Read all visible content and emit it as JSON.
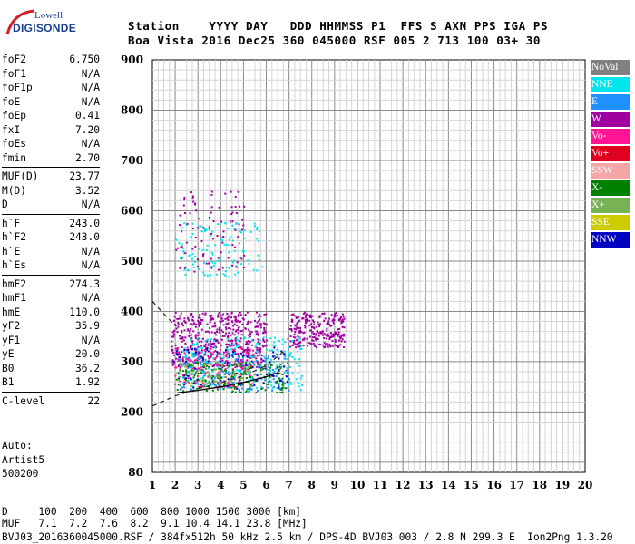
{
  "logo": {
    "line1": "Lowell",
    "line2": "DIGISONDE"
  },
  "header": {
    "row1": "Station    YYYY DAY   DDD HHMMSS P1  FFS S AXN PPS IGA PS",
    "row2": "Boa Vista 2016 Dec25 360 045000 RSF 005 2 713 100 03+ 30"
  },
  "params": {
    "group1": [
      {
        "k": "foF2",
        "v": "6.750"
      },
      {
        "k": "foF1",
        "v": "N/A"
      },
      {
        "k": "foF1p",
        "v": "N/A"
      },
      {
        "k": "foE",
        "v": "N/A"
      },
      {
        "k": "foEp",
        "v": "0.41"
      },
      {
        "k": "fxI",
        "v": "7.20"
      },
      {
        "k": "foEs",
        "v": "N/A"
      },
      {
        "k": "fmin",
        "v": "2.70"
      }
    ],
    "group2": [
      {
        "k": "MUF(D)",
        "v": "23.77"
      },
      {
        "k": "M(D)",
        "v": "3.52"
      },
      {
        "k": "D",
        "v": "N/A"
      }
    ],
    "group3": [
      {
        "k": "h`F",
        "v": "243.0"
      },
      {
        "k": "h`F2",
        "v": "243.0"
      },
      {
        "k": "h`E",
        "v": "N/A"
      },
      {
        "k": "h`Es",
        "v": "N/A"
      }
    ],
    "group4": [
      {
        "k": "hmF2",
        "v": "274.3"
      },
      {
        "k": "hmF1",
        "v": "N/A"
      },
      {
        "k": "hmE",
        "v": "110.0"
      },
      {
        "k": "yF2",
        "v": "35.9"
      },
      {
        "k": "yF1",
        "v": "N/A"
      },
      {
        "k": "yE",
        "v": "20.0"
      },
      {
        "k": "B0",
        "v": "36.2"
      },
      {
        "k": "B1",
        "v": "1.92"
      }
    ],
    "clevel": {
      "k": "C-level",
      "v": "22"
    }
  },
  "auto": {
    "line1": "Auto:",
    "line2": "Artist5",
    "line3": "500200"
  },
  "bottom": {
    "line1": "D     100  200  400  600  800 1000 1500 3000 [km]",
    "line2": "MUF   7.1  7.2  7.6  8.2  9.1 10.4 14.1 23.8 [MHz]",
    "line3": "BVJ03_2016360045000.RSF / 384fx512h 50 kHz 2.5 km / DPS-4D BVJ03 003 / 2.8 N 299.3 E  Ion2Png 1.3.20"
  },
  "legend": [
    {
      "label": "NoVal",
      "color": "#808080"
    },
    {
      "label": "NNE",
      "color": "#00e5ee"
    },
    {
      "label": "E",
      "color": "#1e90ff"
    },
    {
      "label": "W",
      "color": "#a000a0"
    },
    {
      "label": "Vo-",
      "color": "#ff1493"
    },
    {
      "label": "Vo+",
      "color": "#e00020"
    },
    {
      "label": "SSW",
      "color": "#f4a6a6"
    },
    {
      "label": "X-",
      "color": "#008000"
    },
    {
      "label": "X+",
      "color": "#77b255"
    },
    {
      "label": "SSE",
      "color": "#cccc00"
    },
    {
      "label": "NNW",
      "color": "#0000c0"
    }
  ],
  "chart_data": {
    "type": "scatter",
    "xlim": [
      1,
      20
    ],
    "ylim": [
      80,
      900
    ],
    "xticks": [
      1,
      2,
      3,
      4,
      5,
      6,
      7,
      8,
      9,
      10,
      11,
      12,
      13,
      14,
      15,
      16,
      17,
      18,
      19,
      20
    ],
    "yticks": [
      200,
      300,
      400,
      500,
      600,
      700,
      800,
      900
    ],
    "ytick_bottom_label": "80",
    "xtick_labels": [
      "1",
      "2",
      "3",
      "4",
      "5",
      "6",
      "7",
      "8",
      "9",
      "10",
      "11",
      "12",
      "13",
      "14",
      "15",
      "16",
      "17",
      "18",
      "19",
      "20"
    ],
    "ytick_labels": [
      "200",
      "300",
      "400",
      "500",
      "600",
      "700",
      "800",
      "900"
    ],
    "grid": true,
    "regions": [
      {
        "series": "W",
        "fmin": 1.8,
        "fmax": 6.0,
        "hmin": 290,
        "hmax": 400,
        "n": 520
      },
      {
        "series": "W",
        "fmin": 7.0,
        "fmax": 9.4,
        "hmin": 330,
        "hmax": 400,
        "n": 260
      },
      {
        "series": "Vo-",
        "fmin": 1.9,
        "fmax": 5.5,
        "hmin": 250,
        "hmax": 330,
        "n": 160
      },
      {
        "series": "NNE",
        "fmin": 2.3,
        "fmax": 7.6,
        "hmin": 245,
        "hmax": 350,
        "n": 240
      },
      {
        "series": "E",
        "fmin": 2.0,
        "fmax": 7.0,
        "hmin": 240,
        "hmax": 320,
        "n": 160
      },
      {
        "series": "X-",
        "fmin": 2.0,
        "fmax": 6.8,
        "hmin": 240,
        "hmax": 300,
        "n": 160
      },
      {
        "series": "NNW",
        "fmin": 1.9,
        "fmax": 7.0,
        "hmin": 245,
        "hmax": 330,
        "n": 90
      },
      {
        "series": "NNE",
        "fmin": 2.0,
        "fmax": 5.8,
        "hmin": 470,
        "hmax": 580,
        "n": 120
      },
      {
        "series": "W",
        "fmin": 2.0,
        "fmax": 5.0,
        "hmin": 480,
        "hmax": 640,
        "n": 90
      },
      {
        "series": "X+",
        "fmin": 2.0,
        "fmax": 5.5,
        "hmin": 250,
        "hmax": 300,
        "n": 80
      }
    ],
    "trace": [
      {
        "f": 2.1,
        "h": 238
      },
      {
        "f": 3.0,
        "h": 243
      },
      {
        "f": 4.0,
        "h": 250
      },
      {
        "f": 5.0,
        "h": 259
      },
      {
        "f": 6.0,
        "h": 270
      },
      {
        "f": 6.5,
        "h": 278
      },
      {
        "f": 6.75,
        "h": 274
      }
    ],
    "dashed_trace": [
      {
        "f": 1.0,
        "h": 212
      },
      {
        "f": 2.0,
        "h": 232
      },
      {
        "f": 3.0,
        "h": 246
      },
      {
        "f": 4.0,
        "h": 258
      },
      {
        "f": 5.0,
        "h": 272
      },
      {
        "f": 6.0,
        "h": 292
      },
      {
        "f": 6.75,
        "h": 320
      }
    ],
    "dashed_upper": [
      {
        "f": 1.0,
        "h": 420
      },
      {
        "f": 1.5,
        "h": 395
      },
      {
        "f": 2.0,
        "h": 372
      }
    ]
  }
}
